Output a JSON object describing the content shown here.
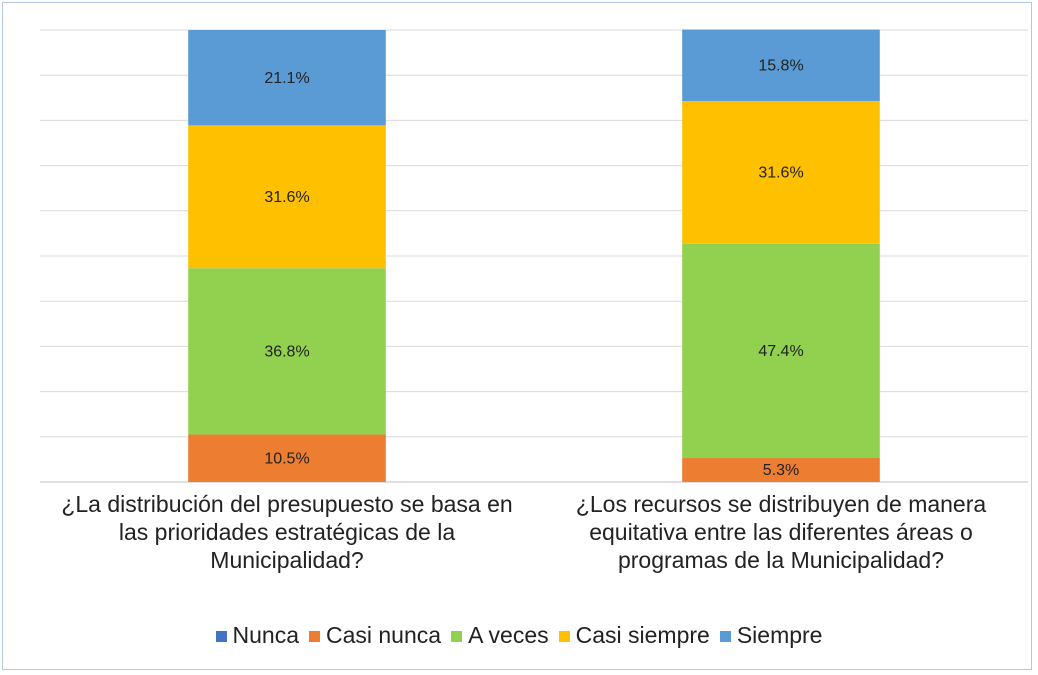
{
  "chart_data": {
    "type": "stacked_bar",
    "categories": [
      "¿La distribución del presupuesto se basa en las prioridades estratégicas de la Municipalidad?",
      "¿Los recursos se distribuyen de manera equitativa entre las diferentes áreas o programas de la Municipalidad?"
    ],
    "series": [
      {
        "name": "Nunca",
        "color": "#4472c4",
        "values": [
          0,
          0
        ]
      },
      {
        "name": "Casi nunca",
        "color": "#ed7d31",
        "values": [
          10.5,
          5.3
        ],
        "value_labels": [
          "10.5%",
          "5.3%"
        ]
      },
      {
        "name": "A veces",
        "color": "#92d050",
        "values": [
          36.8,
          47.4
        ],
        "value_labels": [
          "36.8%",
          "47.4%"
        ]
      },
      {
        "name": "Casi siempre",
        "color": "#ffc000",
        "values": [
          31.6,
          31.6
        ],
        "value_labels": [
          "31.6%",
          "31.6%"
        ]
      },
      {
        "name": "Siempre",
        "color": "#5b9bd5",
        "values": [
          21.1,
          15.8
        ],
        "value_labels": [
          "21.1%",
          "15.8%"
        ]
      }
    ],
    "ylim": [
      0,
      100
    ],
    "yticks": [
      0,
      10,
      20,
      30,
      40,
      50,
      60,
      70,
      80,
      90,
      100
    ],
    "grid": true,
    "legend": "bottom"
  }
}
